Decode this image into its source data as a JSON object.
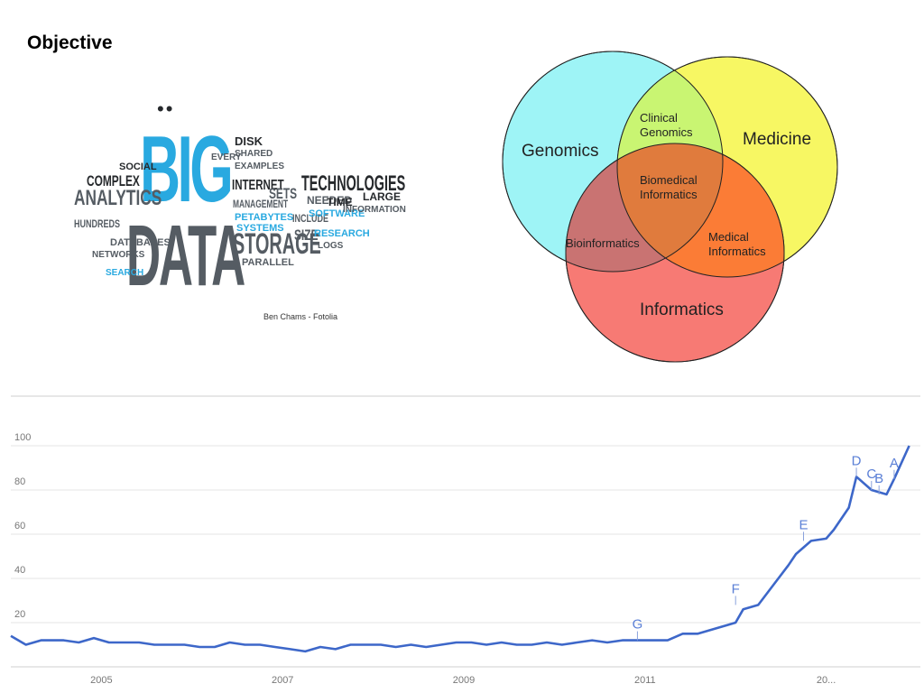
{
  "slide": {
    "title": "Objective"
  },
  "wordcloud": {
    "credit": "Ben Chams - Fotolia",
    "big": "BIG",
    "data": "DATA",
    "words": {
      "analytics": "ANALYTICS",
      "complex": "COMPLEX",
      "technologies": "TECHNOLOGIES",
      "storage": "STORAGE",
      "internet": "INTERNET",
      "management": "MANAGEMENT",
      "petabytes": "PETABYTES",
      "systems": "SYSTEMS",
      "include": "INCLUDE",
      "software": "SOFTWARE",
      "research": "RESEARCH",
      "size": "SIZE",
      "parallel": "PARALLEL",
      "search": "SEARCH",
      "hundreds": "HUNDREDS",
      "databases": "DATABASES",
      "networks": "NETWORKS",
      "social": "SOCIAL",
      "disk": "DISK",
      "sets": "SETS",
      "time": "TIME",
      "large": "LARGE",
      "information": "INFORMATION",
      "needed": "NEEDED",
      "logs": "LOGS",
      "shared": "SHARED",
      "examples": "EXAMPLES",
      "every": "EVERY"
    }
  },
  "venn": {
    "circles": {
      "genomics": {
        "label": "Genomics",
        "color": "#9ef4f6"
      },
      "medicine": {
        "label": "Medicine",
        "color": "#f7f763"
      },
      "informatics": {
        "label": "Informatics",
        "color": "#f77a74"
      }
    },
    "regions": {
      "clinical_genomics": [
        "Clinical",
        "Genomics"
      ],
      "biomedical_informatics": [
        "Biomedical",
        "Informatics"
      ],
      "medical_informatics": [
        "Medical",
        "Informatics"
      ],
      "bioinformatics": "Bioinformatics"
    },
    "overlap_colors": {
      "genomics_medicine": "#c9f572",
      "genomics_informatics": "#c97372",
      "medicine_informatics": "#fb7c36",
      "all_three": "#e07b3d"
    }
  },
  "chart_data": {
    "type": "line",
    "ylim": [
      0,
      100
    ],
    "xlim": [
      "2004-01",
      "2014-01"
    ],
    "y_ticks": [
      20,
      40,
      60,
      80,
      100
    ],
    "y_tick_labels": [
      "20",
      "40",
      "60",
      "80",
      "100"
    ],
    "x_tick_labels": [
      "2005",
      "2007",
      "2009",
      "2011",
      "20..."
    ],
    "x_tick_dates": [
      "2005-01",
      "2007-01",
      "2009-01",
      "2011-01",
      "2013-01"
    ],
    "line_color": "#3d67c9",
    "grid": true,
    "series": [
      {
        "x": [
          "2004-01",
          "2004-03",
          "2004-05",
          "2004-08",
          "2004-10",
          "2004-12",
          "2005-02",
          "2005-04",
          "2005-06",
          "2005-08",
          "2005-10",
          "2005-12",
          "2006-02",
          "2006-04",
          "2006-06",
          "2006-08",
          "2006-10",
          "2006-12",
          "2007-02",
          "2007-04",
          "2007-06",
          "2007-08",
          "2007-10",
          "2007-12",
          "2008-02",
          "2008-04",
          "2008-06",
          "2008-08",
          "2008-10",
          "2008-12",
          "2009-02",
          "2009-04",
          "2009-06",
          "2009-08",
          "2009-10",
          "2009-12",
          "2010-02",
          "2010-04",
          "2010-06",
          "2010-08",
          "2010-10",
          "2010-12",
          "2011-02",
          "2011-04",
          "2011-06",
          "2011-08",
          "2011-10",
          "2011-12",
          "2012-01",
          "2012-02",
          "2012-04",
          "2012-06",
          "2012-08",
          "2012-09",
          "2012-11",
          "2013-01",
          "2013-02",
          "2013-04",
          "2013-05",
          "2013-07",
          "2013-09",
          "2013-10",
          "2013-12"
        ],
        "values": [
          14,
          10,
          12,
          12,
          11,
          13,
          11,
          11,
          11,
          10,
          10,
          10,
          9,
          9,
          11,
          10,
          10,
          9,
          8,
          7,
          9,
          8,
          10,
          10,
          10,
          9,
          10,
          9,
          10,
          11,
          11,
          10,
          11,
          10,
          10,
          11,
          10,
          11,
          12,
          11,
          12,
          12,
          12,
          12,
          15,
          15,
          17,
          19,
          20,
          26,
          28,
          37,
          46,
          51,
          57,
          58,
          62,
          72,
          86,
          80,
          78,
          85,
          100
        ]
      }
    ],
    "annotations": [
      {
        "label": "G",
        "x": "2010-12",
        "y": 12
      },
      {
        "label": "F",
        "x": "2012-01",
        "y": 28
      },
      {
        "label": "E",
        "x": "2012-10",
        "y": 57
      },
      {
        "label": "D",
        "x": "2013-05",
        "y": 86
      },
      {
        "label": "C",
        "x": "2013-07",
        "y": 80
      },
      {
        "label": "B",
        "x": "2013-08",
        "y": 78
      },
      {
        "label": "A",
        "x": "2013-10",
        "y": 85
      }
    ]
  }
}
